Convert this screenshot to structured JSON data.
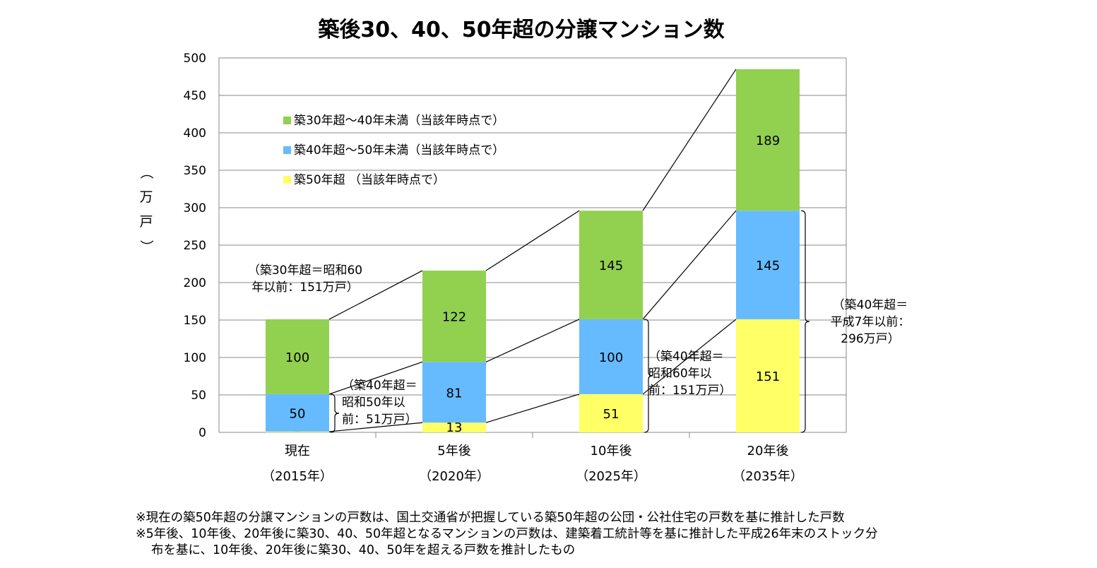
{
  "chart_data": {
    "type": "bar",
    "stacked": true,
    "title": "築後30、40、50年超の分譲マンション数",
    "ylabel": "（万戸）",
    "ylim": [
      0,
      500
    ],
    "yticks": [
      0,
      50,
      100,
      150,
      200,
      250,
      300,
      350,
      400,
      450,
      500
    ],
    "grid": true,
    "legend_position": "top-left",
    "categories": [
      {
        "label": "現在",
        "sublabel": "（2015年）"
      },
      {
        "label": "5年後",
        "sublabel": "（2020年）"
      },
      {
        "label": "10年後",
        "sublabel": "（2025年）"
      },
      {
        "label": "20年後",
        "sublabel": "（2035年）"
      }
    ],
    "series": [
      {
        "name": "築50年超 （当該年時点で）",
        "color": "#FFFF66",
        "values": [
          1,
          13,
          51,
          151
        ]
      },
      {
        "name": "築40年超～50年未満（当該年時点で）",
        "color": "#66BBFF",
        "values": [
          50,
          81,
          100,
          145
        ]
      },
      {
        "name": "築30年超～40年未満（当該年時点で）",
        "color": "#92D050",
        "values": [
          100,
          122,
          145,
          189
        ]
      }
    ],
    "legend_order": [
      2,
      1,
      0
    ],
    "annotations": [
      {
        "lines": [
          "（築30年超＝昭和60",
          "年以前：151万戸）"
        ]
      },
      {
        "lines": [
          "（築40年超＝",
          "昭和50年以",
          "前：51万戸）"
        ]
      },
      {
        "lines": [
          "（築40年超＝",
          "昭和60年以",
          "前：151万戸）"
        ]
      },
      {
        "lines": [
          "（築40年超＝",
          "平成7年以前：",
          "296万戸）"
        ]
      }
    ]
  },
  "notes": [
    "※現在の築50年超の分譲マンションの戸数は、国土交通省が把握している築50年超の公団・公社住宅の戸数を基に推計した戸数",
    "※5年後、10年後、20年後に築30、40、50年超となるマンションの戸数は、建築着工統計等を基に推計した平成26年末のストック分",
    "布を基に、10年後、20年後に築30、40、50年を超える戸数を推計したもの"
  ]
}
